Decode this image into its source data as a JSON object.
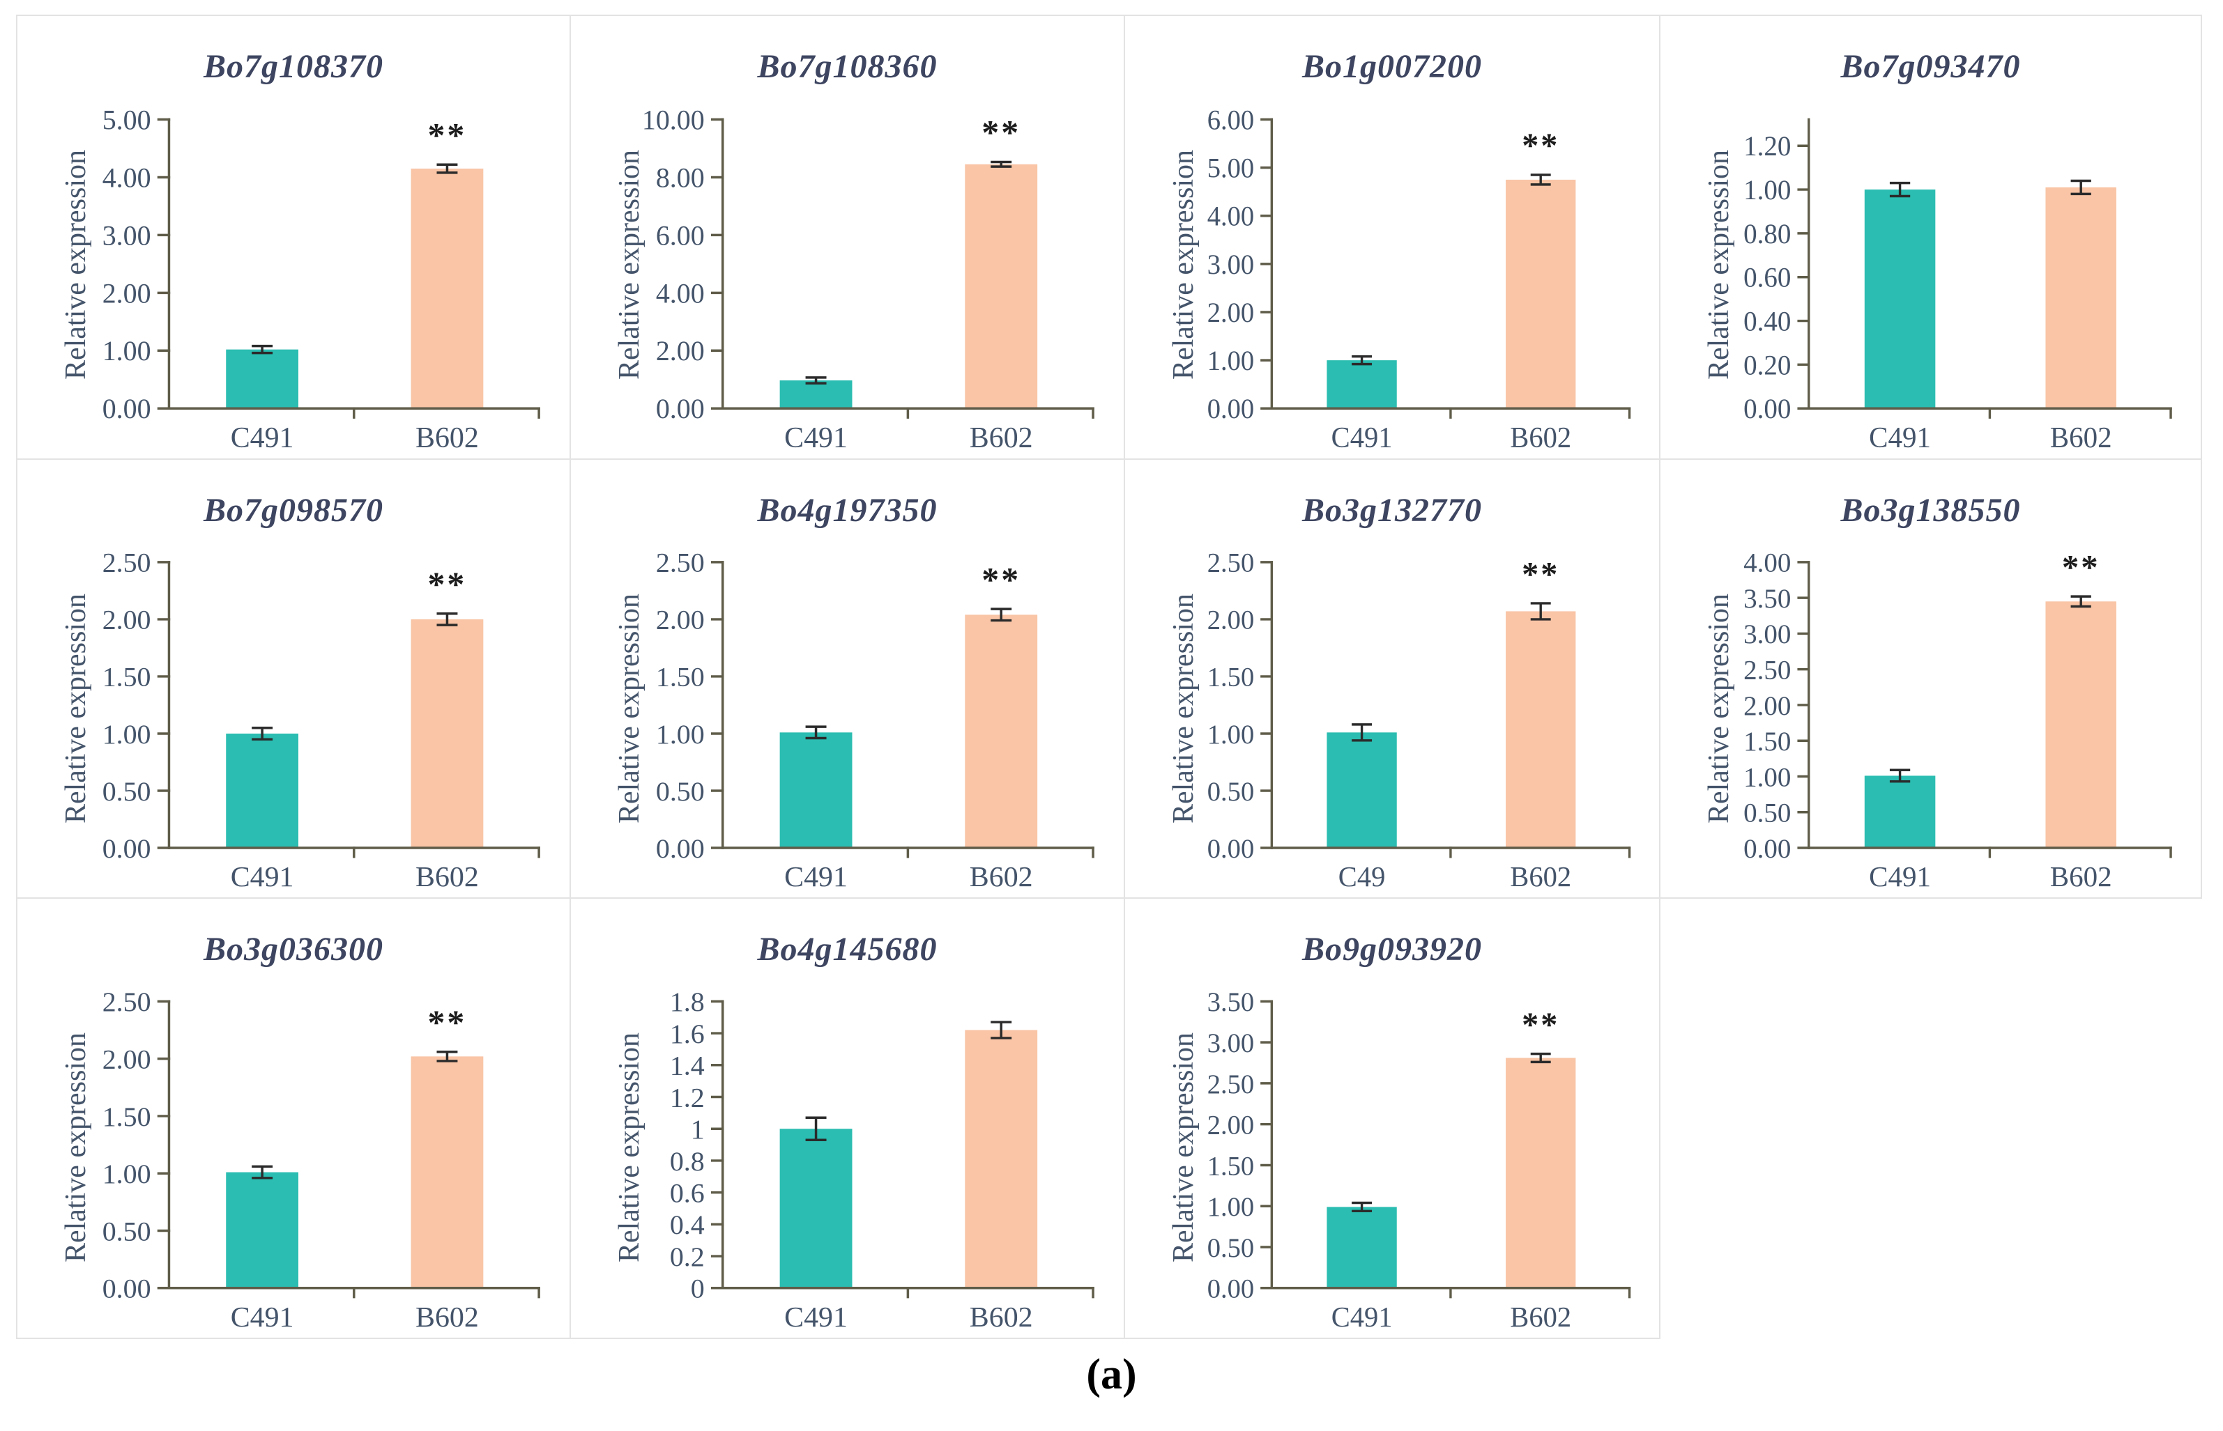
{
  "caption": "(a)",
  "colors": {
    "bar_c491": "#2BBDB1",
    "bar_b602": "#F9C5A6",
    "axis": "#5F5C49",
    "tick_text": "#44546A",
    "title_text": "#3D4560",
    "error_bar": "#2B2B2B",
    "panel_border": "#E3E3E3",
    "significance": "#1C1C1C"
  },
  "chart_data": [
    {
      "type": "bar",
      "title": "Bo7g108370",
      "ylabel": "Relative expression",
      "categories": [
        "C491",
        "B602"
      ],
      "values": [
        1.02,
        4.15
      ],
      "errors": [
        0.06,
        0.07
      ],
      "significance": [
        "",
        "**"
      ],
      "yticks": [
        "0.00",
        "1.00",
        "2.00",
        "3.00",
        "4.00",
        "5.00"
      ],
      "axis_max": 5,
      "grid": false,
      "legend": false
    },
    {
      "type": "bar",
      "title": "Bo7g108360",
      "ylabel": "Relative expression",
      "categories": [
        "C491",
        "B602"
      ],
      "values": [
        0.97,
        8.45
      ],
      "errors": [
        0.1,
        0.08
      ],
      "significance": [
        "",
        "**"
      ],
      "yticks": [
        "0.00",
        "2.00",
        "4.00",
        "6.00",
        "8.00",
        "10.00"
      ],
      "axis_max": 10,
      "grid": false,
      "legend": false
    },
    {
      "type": "bar",
      "title": "Bo1g007200",
      "ylabel": "Relative expression",
      "categories": [
        "C491",
        "B602"
      ],
      "values": [
        1.0,
        4.75
      ],
      "errors": [
        0.08,
        0.1
      ],
      "significance": [
        "",
        "**"
      ],
      "yticks": [
        "0.00",
        "1.00",
        "2.00",
        "3.00",
        "4.00",
        "5.00",
        "6.00"
      ],
      "axis_max": 6,
      "grid": false,
      "legend": false
    },
    {
      "type": "bar",
      "title": "Bo7g093470",
      "ylabel": "Relative expression",
      "categories": [
        "C491",
        "B602"
      ],
      "values": [
        1.0,
        1.01
      ],
      "errors": [
        0.03,
        0.03
      ],
      "significance": [
        "",
        ""
      ],
      "yticks": [
        "0.00",
        "0.20",
        "0.40",
        "0.60",
        "0.80",
        "1.00",
        "1.20"
      ],
      "axis_max": 1.32,
      "grid": false,
      "legend": false
    },
    {
      "type": "bar",
      "title": "Bo7g098570",
      "ylabel": "Relative expression",
      "categories": [
        "C491",
        "B602"
      ],
      "values": [
        1.0,
        2.0
      ],
      "errors": [
        0.05,
        0.05
      ],
      "significance": [
        "",
        "**"
      ],
      "yticks": [
        "0.00",
        "0.50",
        "1.00",
        "1.50",
        "2.00",
        "2.50"
      ],
      "axis_max": 2.5,
      "grid": false,
      "legend": false
    },
    {
      "type": "bar",
      "title": "Bo4g197350",
      "ylabel": "Relative expression",
      "categories": [
        "C491",
        "B602"
      ],
      "values": [
        1.01,
        2.04
      ],
      "errors": [
        0.05,
        0.05
      ],
      "significance": [
        "",
        "**"
      ],
      "yticks": [
        "0.00",
        "0.50",
        "1.00",
        "1.50",
        "2.00",
        "2.50"
      ],
      "axis_max": 2.5,
      "grid": false,
      "legend": false
    },
    {
      "type": "bar",
      "title": "Bo3g132770",
      "ylabel": "Relative expression",
      "categories": [
        "C49",
        "B602"
      ],
      "values": [
        1.01,
        2.07
      ],
      "errors": [
        0.07,
        0.07
      ],
      "significance": [
        "",
        "**"
      ],
      "yticks": [
        "0.00",
        "0.50",
        "1.00",
        "1.50",
        "2.00",
        "2.50"
      ],
      "axis_max": 2.5,
      "grid": false,
      "legend": false
    },
    {
      "type": "bar",
      "title": "Bo3g138550",
      "ylabel": "Relative expression",
      "categories": [
        "C491",
        "B602"
      ],
      "values": [
        1.01,
        3.45
      ],
      "errors": [
        0.08,
        0.07
      ],
      "significance": [
        "",
        "**"
      ],
      "yticks": [
        "0.00",
        "0.50",
        "1.00",
        "1.50",
        "2.00",
        "2.50",
        "3.00",
        "3.50",
        "4.00"
      ],
      "axis_max": 4,
      "grid": false,
      "legend": false
    },
    {
      "type": "bar",
      "title": "Bo3g036300",
      "ylabel": "Relative expression",
      "categories": [
        "C491",
        "B602"
      ],
      "values": [
        1.01,
        2.02
      ],
      "errors": [
        0.05,
        0.04
      ],
      "significance": [
        "",
        "**"
      ],
      "yticks": [
        "0.00",
        "0.50",
        "1.00",
        "1.50",
        "2.00",
        "2.50"
      ],
      "axis_max": 2.5,
      "grid": false,
      "legend": false
    },
    {
      "type": "bar",
      "title": "Bo4g145680",
      "ylabel": "Relative expression",
      "categories": [
        "C491",
        "B602"
      ],
      "values": [
        1.0,
        1.62
      ],
      "errors": [
        0.07,
        0.05
      ],
      "significance": [
        "",
        ""
      ],
      "yticks": [
        "0",
        "0.2",
        "0.4",
        "0.6",
        "0.8",
        "1",
        "1.2",
        "1.4",
        "1.6",
        "1.8"
      ],
      "axis_max": 1.8,
      "grid": false,
      "legend": false
    },
    {
      "type": "bar",
      "title": "Bo9g093920",
      "ylabel": "Relative expression",
      "categories": [
        "C491",
        "B602"
      ],
      "values": [
        0.99,
        2.81
      ],
      "errors": [
        0.05,
        0.05
      ],
      "significance": [
        "",
        "**"
      ],
      "yticks": [
        "0.00",
        "0.50",
        "1.00",
        "1.50",
        "2.00",
        "2.50",
        "3.00",
        "3.50"
      ],
      "axis_max": 3.5,
      "grid": false,
      "legend": false
    }
  ]
}
